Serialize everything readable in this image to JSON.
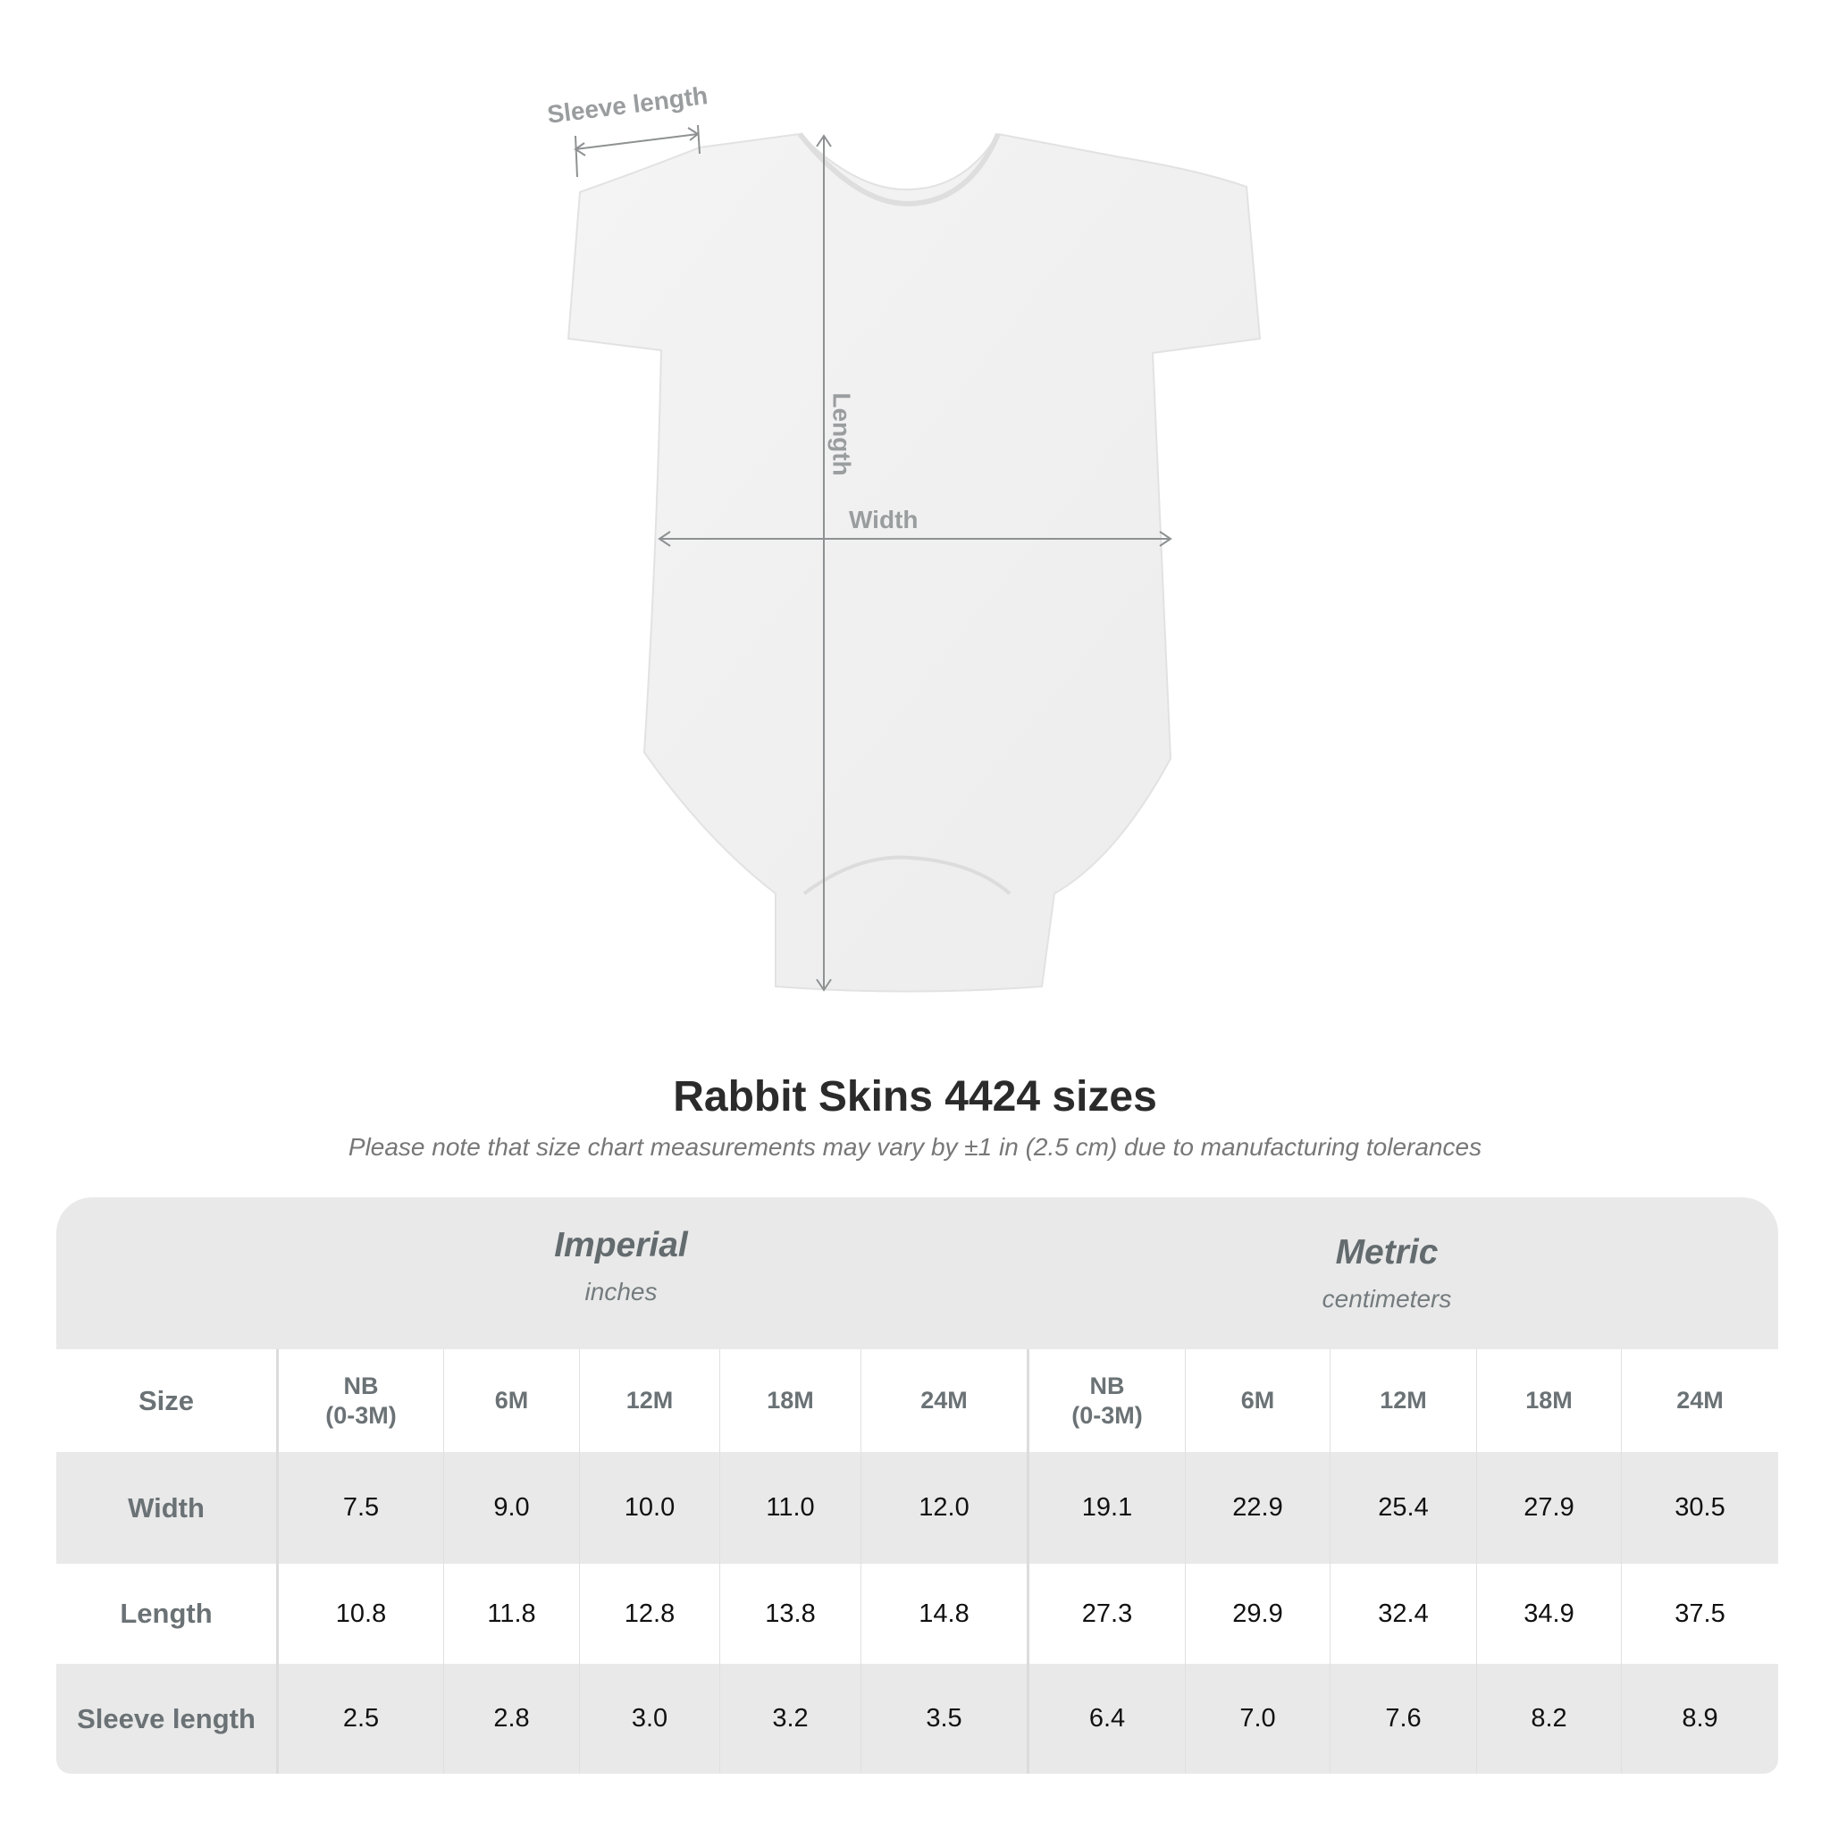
{
  "diagram": {
    "labels": {
      "sleeve": "Sleeve length",
      "length": "Length",
      "width": "Width"
    },
    "line_color": "#8e9192"
  },
  "title": "Rabbit Skins 4424 sizes",
  "subtitle": "Please note that size chart measurements may vary by ±1 in (2.5 cm) due to manufacturing tolerances",
  "table": {
    "imperial": {
      "name": "Imperial",
      "unit": "inches"
    },
    "metric": {
      "name": "Metric",
      "unit": "centimeters"
    },
    "size_label": "Size",
    "sizes": [
      "NB\n(0-3M)",
      "6M",
      "12M",
      "18M",
      "24M",
      "NB\n(0-3M)",
      "6M",
      "12M",
      "18M",
      "24M"
    ],
    "rows": [
      {
        "label": "Width",
        "values": [
          "7.5",
          "9.0",
          "10.0",
          "11.0",
          "12.0",
          "19.1",
          "22.9",
          "25.4",
          "27.9",
          "30.5"
        ]
      },
      {
        "label": "Length",
        "values": [
          "10.8",
          "11.8",
          "12.8",
          "13.8",
          "14.8",
          "27.3",
          "29.9",
          "32.4",
          "34.9",
          "37.5"
        ]
      },
      {
        "label": "Sleeve length",
        "values": [
          "2.5",
          "2.8",
          "3.0",
          "3.2",
          "3.5",
          "6.4",
          "7.0",
          "7.6",
          "8.2",
          "8.9"
        ]
      }
    ]
  }
}
